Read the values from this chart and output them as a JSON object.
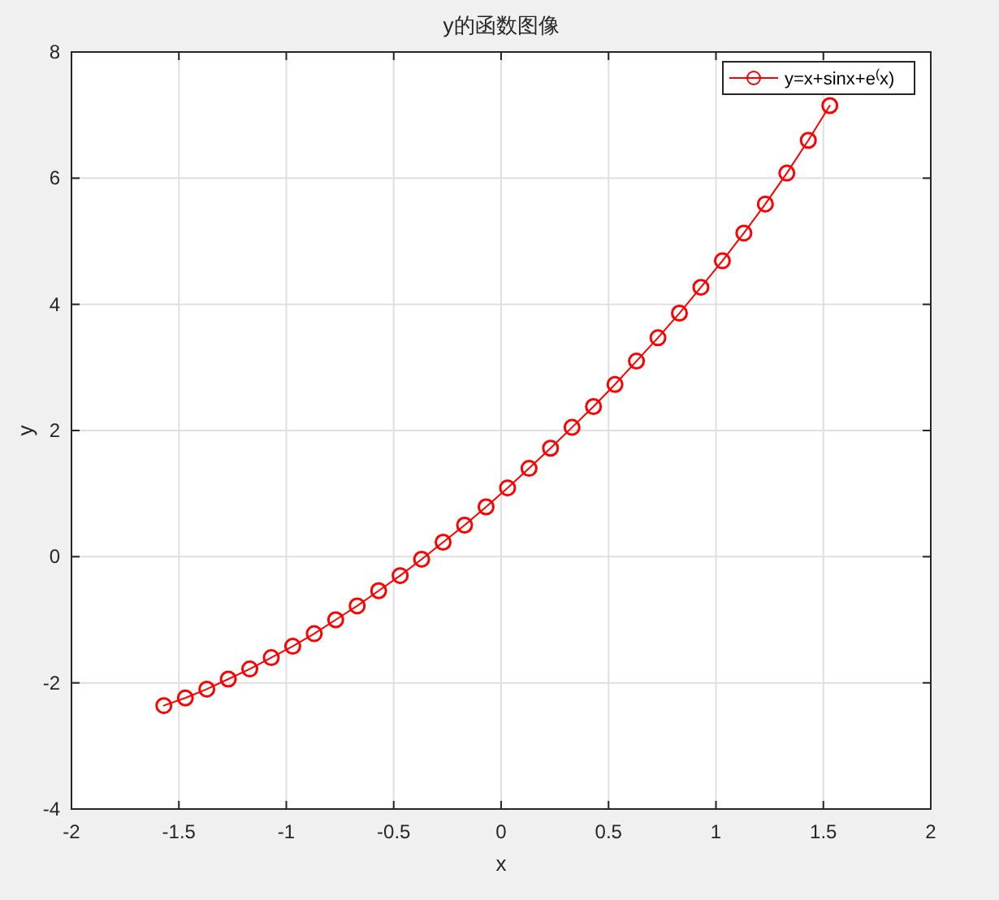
{
  "chart_data": {
    "type": "line",
    "title": "y的函数图像",
    "xlabel": "x",
    "ylabel": "y",
    "xlim": [
      -2,
      2
    ],
    "xticks": [
      -2,
      -1.5,
      -1,
      -0.5,
      0,
      0.5,
      1,
      1.5,
      2
    ],
    "ylim": [
      -4,
      8
    ],
    "yticks": [
      -4,
      -2,
      0,
      2,
      4,
      6,
      8
    ],
    "grid": true,
    "legend": "top right",
    "marker": "circle",
    "line_style": "solid",
    "series": [
      {
        "name": "y=x+sinx+e$^{(}$x)",
        "color": "#ff0000",
        "x": [
          -1.57,
          -1.47,
          -1.37,
          -1.27,
          -1.17,
          -1.07,
          -0.97,
          -0.87,
          -0.77,
          -0.67,
          -0.57,
          -0.47,
          -0.37,
          -0.27,
          -0.17,
          -0.07,
          0.03,
          0.13,
          0.23,
          0.33,
          0.43,
          0.53,
          0.63,
          0.73,
          0.83,
          0.93,
          1.03,
          1.13,
          1.23,
          1.33,
          1.43,
          1.53
        ],
        "values": [
          -2.36,
          -2.24,
          -2.1,
          -1.94,
          -1.78,
          -1.6,
          -1.42,
          -1.22,
          -1.0,
          -0.78,
          -0.54,
          -0.3,
          -0.04,
          0.23,
          0.5,
          0.79,
          1.09,
          1.4,
          1.72,
          2.05,
          2.38,
          2.73,
          3.1,
          3.47,
          3.86,
          4.27,
          4.69,
          5.13,
          5.59,
          6.08,
          6.6,
          7.15
        ]
      }
    ]
  }
}
